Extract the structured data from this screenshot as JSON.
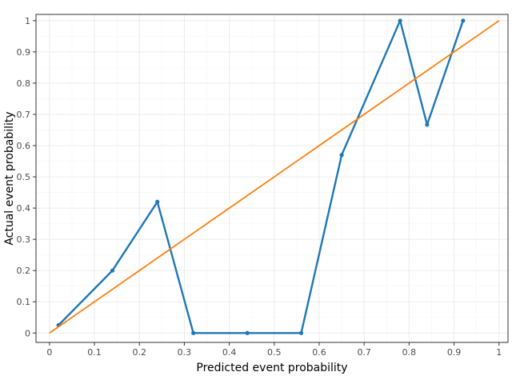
{
  "chart_data": {
    "type": "line",
    "title": "",
    "xlabel": "Predicted event probability",
    "ylabel": "Actual event probability",
    "xlim": [
      -0.03,
      1.02
    ],
    "ylim": [
      -0.03,
      1.02
    ],
    "x_ticks": [
      0,
      0.1,
      0.2,
      0.3,
      0.4,
      0.5,
      0.6,
      0.7,
      0.8,
      0.9,
      1
    ],
    "x_tick_labels": [
      "0",
      "0.1",
      "0.2",
      "0.3",
      "0.4",
      "0.5",
      "0.6",
      "0.7",
      "0.8",
      "0.9",
      "1"
    ],
    "y_ticks": [
      0,
      0.1,
      0.2,
      0.3,
      0.4,
      0.5,
      0.6,
      0.7,
      0.8,
      0.9,
      1
    ],
    "y_tick_labels": [
      "0",
      "0.1",
      "0.2",
      "0.3",
      "0.4",
      "0.5",
      "0.6",
      "0.7",
      "0.8",
      "0.9",
      "1"
    ],
    "grid": true,
    "legend": "none",
    "series": [
      {
        "color": "#1f77b4",
        "markers": true,
        "x": [
          0.02,
          0.14,
          0.24,
          0.32,
          0.44,
          0.56,
          0.65,
          0.78,
          0.84,
          0.92
        ],
        "y": [
          0.025,
          0.2,
          0.42,
          0.0,
          0.0,
          0.0,
          0.57,
          1.0,
          0.667,
          1.0
        ]
      },
      {
        "color": "#ff7f0e",
        "markers": false,
        "x": [
          0,
          1
        ],
        "y": [
          0,
          1
        ]
      }
    ],
    "colors": {
      "panel_border": "#333333",
      "grid_major": "#ebebeb",
      "grid_minor": "#f5f5f5"
    }
  }
}
